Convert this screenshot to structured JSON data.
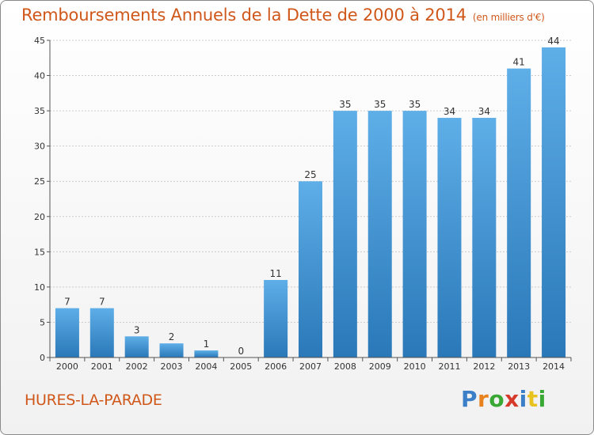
{
  "title": "Remboursements Annuels de la Dette de 2000 à 2014",
  "unit": "(en milliers d'€)",
  "commune": "HURES-LA-PARADE",
  "brand": {
    "letters": [
      "P",
      "r",
      "o",
      "x",
      "i",
      "t",
      "i"
    ],
    "colors": [
      "#3a7fc8",
      "#e8821e",
      "#3aa835",
      "#d63a2a",
      "#3a7fc8",
      "#e8c21e",
      "#3aa835"
    ]
  },
  "colors": {
    "title": "#d0571a",
    "bar_top": "#5eaee8",
    "bar_bottom": "#2a78b8",
    "grid": "#cccccc",
    "axis": "#555555"
  },
  "chart_data": {
    "type": "bar",
    "categories": [
      "2000",
      "2001",
      "2002",
      "2003",
      "2004",
      "2005",
      "2006",
      "2007",
      "2008",
      "2009",
      "2010",
      "2011",
      "2012",
      "2013",
      "2014"
    ],
    "values": [
      7,
      7,
      3,
      2,
      1,
      0,
      11,
      25,
      35,
      35,
      35,
      34,
      34,
      41,
      44
    ],
    "ylim": [
      0,
      45
    ],
    "yticks": [
      0,
      5,
      10,
      15,
      20,
      25,
      30,
      35,
      40,
      45
    ],
    "grid": true
  }
}
